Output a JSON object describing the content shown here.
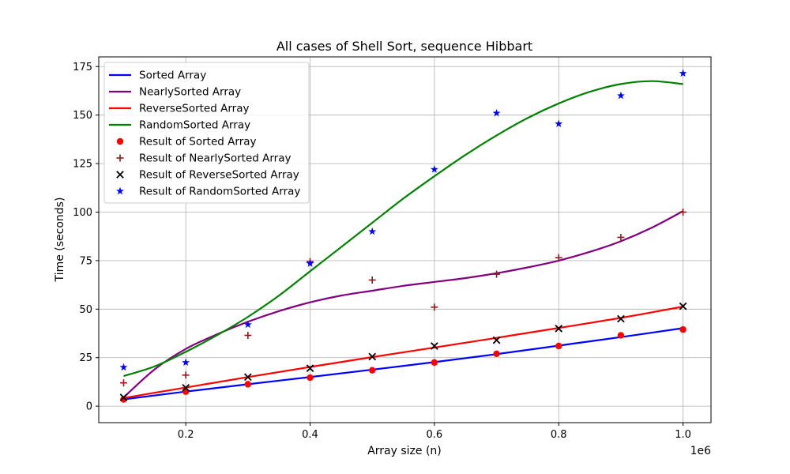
{
  "chart_data": {
    "type": "line",
    "title": "All cases of Shell Sort, sequence Hibbart",
    "xlabel": "Array size (n)",
    "ylabel": "Time (seconds)",
    "x_offset_label": "1e6",
    "xlim": [
      60000,
      1045000
    ],
    "ylim": [
      -8.5,
      180
    ],
    "x_ticks": [
      200000,
      400000,
      600000,
      800000,
      1000000
    ],
    "x_tick_labels": [
      "0.2",
      "0.4",
      "0.6",
      "0.8",
      "1.0"
    ],
    "y_ticks": [
      0,
      25,
      50,
      75,
      100,
      125,
      150,
      175
    ],
    "y_tick_labels": [
      "0",
      "25",
      "50",
      "75",
      "100",
      "125",
      "150",
      "175"
    ],
    "grid": true,
    "legend_position": "top-left",
    "x": [
      100000,
      200000,
      300000,
      400000,
      500000,
      600000,
      700000,
      800000,
      900000,
      1000000
    ],
    "series": [
      {
        "name": "Sorted Array",
        "kind": "line",
        "color": "#0000ff",
        "points": [
          [
            100000,
            3.5
          ],
          [
            200000,
            7.5
          ],
          [
            300000,
            11.3
          ],
          [
            400000,
            15.0
          ],
          [
            500000,
            18.8
          ],
          [
            600000,
            22.7
          ],
          [
            700000,
            26.8
          ],
          [
            800000,
            31.2
          ],
          [
            900000,
            35.6
          ],
          [
            1000000,
            40.2
          ]
        ]
      },
      {
        "name": "NearlySorted Array",
        "kind": "line",
        "color": "#800080",
        "points": [
          [
            100000,
            4.5
          ],
          [
            150000,
            19
          ],
          [
            200000,
            29.5
          ],
          [
            250000,
            37
          ],
          [
            300000,
            43.5
          ],
          [
            350000,
            49
          ],
          [
            400000,
            53.5
          ],
          [
            450000,
            57
          ],
          [
            500000,
            59.5
          ],
          [
            550000,
            62
          ],
          [
            600000,
            64
          ],
          [
            650000,
            66
          ],
          [
            700000,
            68.5
          ],
          [
            750000,
            71.5
          ],
          [
            800000,
            75
          ],
          [
            850000,
            79.5
          ],
          [
            900000,
            85
          ],
          [
            950000,
            92
          ],
          [
            1000000,
            100.5
          ]
        ]
      },
      {
        "name": "ReverseSorted Array",
        "kind": "line",
        "color": "#ff0000",
        "points": [
          [
            100000,
            4.2
          ],
          [
            200000,
            9.6
          ],
          [
            300000,
            15
          ],
          [
            400000,
            20.2
          ],
          [
            500000,
            25.3
          ],
          [
            600000,
            30.2
          ],
          [
            700000,
            35.2
          ],
          [
            800000,
            40.3
          ],
          [
            900000,
            45.5
          ],
          [
            1000000,
            51.3
          ]
        ]
      },
      {
        "name": "RandomSorted Array",
        "kind": "line",
        "color": "#008000",
        "points": [
          [
            100000,
            15.5
          ],
          [
            150000,
            20.5
          ],
          [
            200000,
            28
          ],
          [
            250000,
            36.5
          ],
          [
            300000,
            46
          ],
          [
            350000,
            57
          ],
          [
            400000,
            69.5
          ],
          [
            450000,
            82
          ],
          [
            500000,
            94.5
          ],
          [
            550000,
            107
          ],
          [
            600000,
            118.5
          ],
          [
            650000,
            129.5
          ],
          [
            700000,
            139.5
          ],
          [
            750000,
            148.5
          ],
          [
            800000,
            156
          ],
          [
            850000,
            162
          ],
          [
            900000,
            166
          ],
          [
            950000,
            167.5
          ],
          [
            1000000,
            166
          ]
        ]
      },
      {
        "name": "Result of Sorted Array",
        "kind": "scatter",
        "marker": "circle",
        "color": "#ff0000",
        "values": [
          3.5,
          7.5,
          11.3,
          14.7,
          18.5,
          22.5,
          27,
          31,
          36.5,
          39.5
        ]
      },
      {
        "name": "Result of NearlySorted Array",
        "kind": "scatter",
        "marker": "plus",
        "color": "#8b1a1a",
        "values": [
          12,
          16,
          36.5,
          74.5,
          65,
          51,
          68,
          76.5,
          87,
          100
        ]
      },
      {
        "name": "Result of ReverseSorted Array",
        "kind": "scatter",
        "marker": "x",
        "color": "#000000",
        "values": [
          4.5,
          9.5,
          15,
          19.5,
          25.5,
          31,
          34,
          40,
          45,
          51.5
        ]
      },
      {
        "name": "Result of RandomSorted Array",
        "kind": "scatter",
        "marker": "star",
        "color": "#0000ff",
        "values": [
          20,
          22.5,
          42,
          73.5,
          90,
          122,
          151,
          145.5,
          160,
          171.5
        ]
      }
    ]
  }
}
